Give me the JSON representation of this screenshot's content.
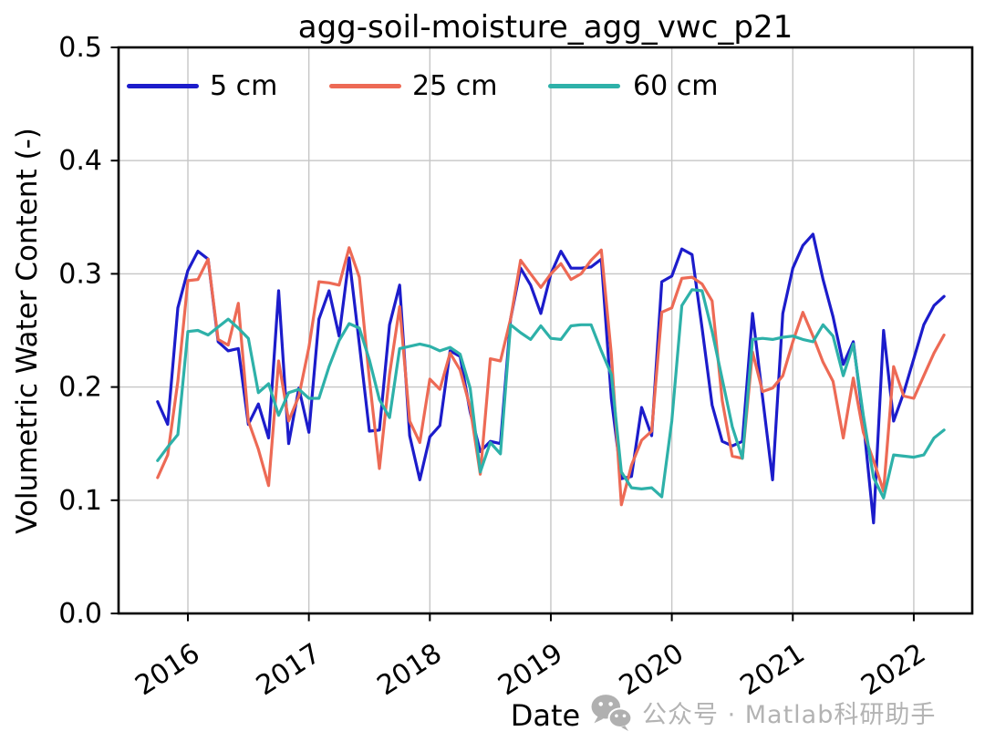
{
  "chart_data": {
    "type": "line",
    "title": "agg-soil-moisture_agg_vwc_p21",
    "xlabel": "Date",
    "ylabel": "Volumetric Water Content (-)",
    "xlim": [
      2015.427,
      2022.483
    ],
    "ylim": [
      0.0,
      0.5
    ],
    "grid": true,
    "grid_color": "#c6c6c6",
    "legend_position": "upper left horizontal, no frame",
    "x_ticks": {
      "values": [
        2016,
        2017,
        2018,
        2019,
        2020,
        2021,
        2022
      ],
      "labels": [
        "2016",
        "2017",
        "2018",
        "2019",
        "2020",
        "2021",
        "2022"
      ],
      "rotation_deg": -33
    },
    "y_ticks": {
      "values": [
        0.0,
        0.1,
        0.2,
        0.3,
        0.4,
        0.5
      ],
      "labels": [
        "0.0",
        "0.1",
        "0.2",
        "0.3",
        "0.4",
        "0.5"
      ]
    },
    "x_unit": "decimal_year_monthly",
    "x": [
      2015.75,
      2015.833,
      2015.917,
      2016.0,
      2016.083,
      2016.167,
      2016.25,
      2016.333,
      2016.417,
      2016.5,
      2016.583,
      2016.667,
      2016.75,
      2016.833,
      2016.917,
      2017.0,
      2017.083,
      2017.167,
      2017.25,
      2017.333,
      2017.417,
      2017.5,
      2017.583,
      2017.667,
      2017.75,
      2017.833,
      2017.917,
      2018.0,
      2018.083,
      2018.167,
      2018.25,
      2018.333,
      2018.417,
      2018.5,
      2018.583,
      2018.667,
      2018.75,
      2018.833,
      2018.917,
      2019.0,
      2019.083,
      2019.167,
      2019.25,
      2019.333,
      2019.417,
      2019.5,
      2019.583,
      2019.667,
      2019.75,
      2019.833,
      2019.917,
      2020.0,
      2020.083,
      2020.167,
      2020.25,
      2020.333,
      2020.417,
      2020.5,
      2020.583,
      2020.667,
      2020.75,
      2020.833,
      2020.917,
      2021.0,
      2021.083,
      2021.167,
      2021.25,
      2021.333,
      2021.417,
      2021.5,
      2021.583,
      2021.667,
      2021.75,
      2021.833,
      2021.917,
      2022.0,
      2022.083,
      2022.167,
      2022.25
    ],
    "series": [
      {
        "name": "5 cm",
        "color": "#1c1ccb",
        "linewidth": 3.2,
        "values": [
          0.187,
          0.167,
          0.27,
          0.303,
          0.32,
          0.313,
          0.24,
          0.232,
          0.234,
          0.167,
          0.185,
          0.155,
          0.285,
          0.15,
          0.199,
          0.16,
          0.26,
          0.285,
          0.245,
          0.314,
          0.238,
          0.161,
          0.162,
          0.255,
          0.29,
          0.157,
          0.118,
          0.156,
          0.166,
          0.232,
          0.227,
          0.178,
          0.143,
          0.152,
          0.15,
          0.26,
          0.305,
          0.29,
          0.265,
          0.3,
          0.32,
          0.305,
          0.305,
          0.306,
          0.313,
          0.19,
          0.119,
          0.121,
          0.182,
          0.157,
          0.293,
          0.298,
          0.322,
          0.317,
          0.252,
          0.184,
          0.152,
          0.148,
          0.152,
          0.265,
          0.191,
          0.118,
          0.265,
          0.305,
          0.325,
          0.335,
          0.295,
          0.262,
          0.22,
          0.24,
          0.17,
          0.08,
          0.25,
          0.17,
          0.195,
          0.225,
          0.255,
          0.272,
          0.28
        ]
      },
      {
        "name": "25 cm",
        "color": "#ed6a55",
        "linewidth": 3.2,
        "values": [
          0.12,
          0.14,
          0.205,
          0.294,
          0.295,
          0.313,
          0.242,
          0.237,
          0.274,
          0.17,
          0.145,
          0.113,
          0.223,
          0.17,
          0.192,
          0.235,
          0.293,
          0.292,
          0.29,
          0.323,
          0.297,
          0.207,
          0.128,
          0.211,
          0.271,
          0.17,
          0.151,
          0.207,
          0.198,
          0.23,
          0.215,
          0.182,
          0.123,
          0.225,
          0.223,
          0.26,
          0.312,
          0.3,
          0.288,
          0.3,
          0.309,
          0.295,
          0.3,
          0.312,
          0.321,
          0.229,
          0.096,
          0.131,
          0.153,
          0.161,
          0.266,
          0.27,
          0.296,
          0.297,
          0.291,
          0.276,
          0.188,
          0.139,
          0.137,
          0.231,
          0.196,
          0.199,
          0.21,
          0.24,
          0.266,
          0.245,
          0.222,
          0.205,
          0.155,
          0.208,
          0.16,
          0.135,
          0.108,
          0.218,
          0.192,
          0.19,
          0.21,
          0.23,
          0.246
        ]
      },
      {
        "name": "60 cm",
        "color": "#2eb1a9",
        "linewidth": 3.2,
        "values": [
          0.135,
          0.147,
          0.158,
          0.249,
          0.25,
          0.246,
          0.253,
          0.26,
          0.252,
          0.243,
          0.195,
          0.203,
          0.175,
          0.195,
          0.198,
          0.19,
          0.19,
          0.218,
          0.241,
          0.256,
          0.252,
          0.224,
          0.189,
          0.173,
          0.234,
          0.236,
          0.238,
          0.236,
          0.232,
          0.235,
          0.229,
          0.199,
          0.125,
          0.151,
          0.141,
          0.255,
          0.248,
          0.242,
          0.254,
          0.243,
          0.242,
          0.254,
          0.255,
          0.255,
          0.232,
          0.211,
          0.125,
          0.111,
          0.11,
          0.111,
          0.103,
          0.17,
          0.272,
          0.286,
          0.285,
          0.249,
          0.207,
          0.165,
          0.137,
          0.242,
          0.243,
          0.242,
          0.244,
          0.245,
          0.242,
          0.24,
          0.255,
          0.245,
          0.21,
          0.238,
          0.175,
          0.12,
          0.102,
          0.14,
          0.139,
          0.138,
          0.14,
          0.155,
          0.162
        ]
      }
    ]
  },
  "watermark": {
    "text": "公众号 · Matlab科研助手",
    "icon": "wechat-icon",
    "color": "#b3b3b3"
  }
}
